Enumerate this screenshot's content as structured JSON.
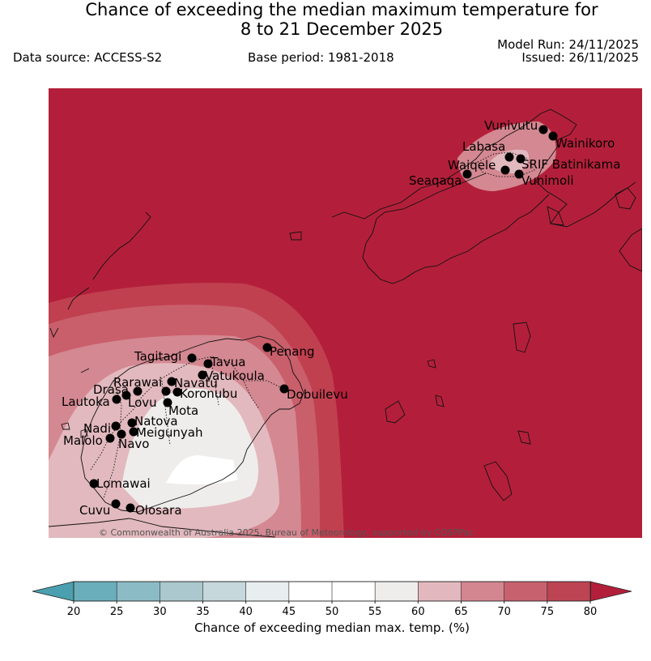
{
  "title_line1": "Chance of exceeding the median maximum temperature for",
  "title_line2": "8 to 21 December 2025",
  "data_source": "Data source: ACCESS-S2",
  "base_period": "Base period: 1981-2018",
  "model_run": "Model Run: 24/11/2025",
  "issued": "Issued: 26/11/2025",
  "copyright": "© Commonwealth of Australia 2025, Bureau of Meteorology, supported by COSPPac",
  "colorbar": {
    "label": "Chance of exceeding median max. temp. (%)",
    "ticks": [
      "20",
      "25",
      "30",
      "35",
      "40",
      "45",
      "50",
      "55",
      "60",
      "65",
      "70",
      "75",
      "80"
    ],
    "colors": [
      "#6aaebb",
      "#8bbcc5",
      "#aac8cd",
      "#c7d8dc",
      "#e8eef0",
      "#ffffff",
      "#ffffff",
      "#efedeb",
      "#e2b8be",
      "#d48690",
      "#c8616e",
      "#bd4553"
    ],
    "under_color": "#4aa0ae",
    "over_color": "#b31f3a"
  },
  "colors": {
    "background_field": "#b31f3a",
    "band_75_80": "#c0404f",
    "band_70_75": "#c95f6b",
    "band_65_70": "#d48891",
    "band_60_65": "#e2b9be",
    "band_55_60": "#efedeb",
    "band_45_55": "#ffffff"
  },
  "locations": [
    {
      "name": "Vunivutu"
    },
    {
      "name": "Wainikoro"
    },
    {
      "name": "Labasa"
    },
    {
      "name": "SRIF Batinikama"
    },
    {
      "name": "Waiqele"
    },
    {
      "name": "Seaqaqa"
    },
    {
      "name": "Vunimoli"
    },
    {
      "name": "Penang"
    },
    {
      "name": "Tagitagi"
    },
    {
      "name": "Tavua"
    },
    {
      "name": "Vatukoula"
    },
    {
      "name": "Rarawai"
    },
    {
      "name": "Navatu"
    },
    {
      "name": "Drasa"
    },
    {
      "name": "Koronubu"
    },
    {
      "name": "Lautoka"
    },
    {
      "name": "Lovu"
    },
    {
      "name": "Dobuilevu"
    },
    {
      "name": "Mota"
    },
    {
      "name": "Natova"
    },
    {
      "name": "Nadi"
    },
    {
      "name": "Meigunyah"
    },
    {
      "name": "Malolo"
    },
    {
      "name": "Navo"
    },
    {
      "name": "Lomawai"
    },
    {
      "name": "Cuvu"
    },
    {
      "name": "Olosara"
    }
  ]
}
